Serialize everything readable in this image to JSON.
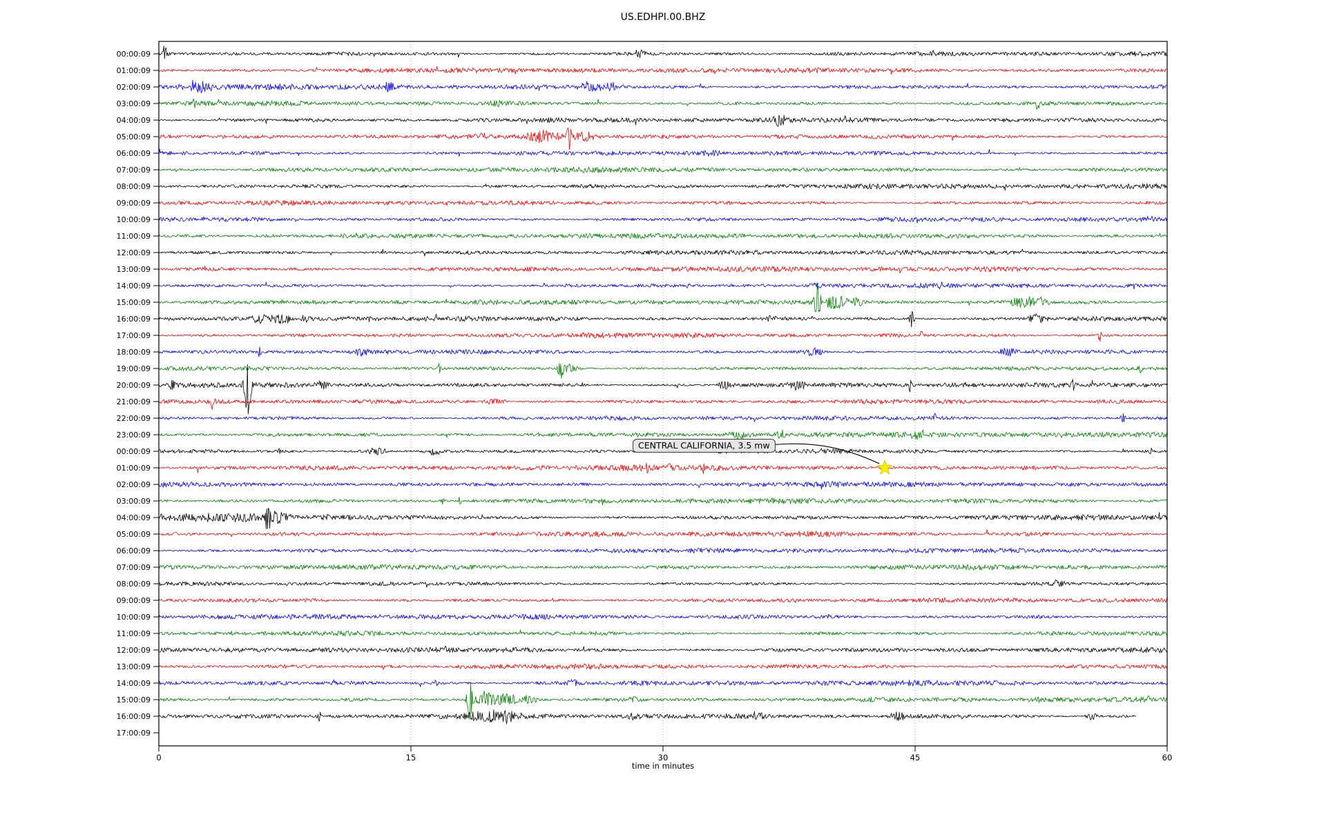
{
  "title": "US.EDHPI.00.BHZ",
  "xlabel": "time in minutes",
  "annotation": {
    "text": "CENTRAL CALIFORNIA, 3.5 mw",
    "marker": "yellow-star",
    "marker_color": "#ffee00",
    "row_index": 25,
    "row_label": "01:00:09",
    "minute": 43.2
  },
  "chart_data": {
    "type": "line",
    "subtype": "seismogram-dayplot-helicorder",
    "station": "US.EDHPI.00.BHZ",
    "title": "US.EDHPI.00.BHZ",
    "xlabel": "time in minutes",
    "x_axis": {
      "min": 0,
      "max": 60,
      "ticks": [
        0,
        15,
        30,
        45,
        60
      ],
      "gridlines": [
        15,
        30,
        45
      ],
      "grid_style": "dotted"
    },
    "minutes_per_row": 60,
    "color_cycle": [
      "#000000",
      "#ff0000",
      "#0000ff",
      "#008000"
    ],
    "grid_color": "#aaaaaa",
    "frame_color": "#000000",
    "rows": [
      {
        "label": "00:00:09",
        "color": "#000000",
        "events": [
          {
            "m": 0.35,
            "a": 13,
            "w": 0.08
          },
          {
            "m": 28.6,
            "a": 5,
            "w": 0.25
          }
        ]
      },
      {
        "label": "01:00:09",
        "color": "#ff0000",
        "events": []
      },
      {
        "label": "02:00:09",
        "color": "#0000ff",
        "events": [
          {
            "m": 2.3,
            "a": 7,
            "w": 0.5
          },
          {
            "m": 13.8,
            "a": 6,
            "w": 0.4
          },
          {
            "m": 25.8,
            "a": 7,
            "w": 0.45
          },
          {
            "m": 27.1,
            "a": 5,
            "w": 0.3
          }
        ]
      },
      {
        "label": "03:00:09",
        "color": "#008000",
        "events": [
          {
            "m": 2.1,
            "a": 6,
            "w": 0.08
          },
          {
            "m": 20.3,
            "a": 4,
            "w": 0.4
          },
          {
            "m": 52.3,
            "a": 8,
            "w": 0.09
          }
        ]
      },
      {
        "label": "04:00:09",
        "color": "#000000",
        "events": [
          {
            "m": 36.9,
            "a": 7,
            "w": 0.3
          }
        ]
      },
      {
        "label": "05:00:09",
        "color": "#ff0000",
        "events": [
          {
            "m": 19.3,
            "a": 6,
            "w": 0.08
          },
          {
            "m": 22.8,
            "a": 8,
            "w": 0.6
          },
          {
            "m": 24.4,
            "a": 22,
            "w": 0.1
          },
          {
            "m": 25.3,
            "a": 7,
            "w": 0.3
          }
        ]
      },
      {
        "label": "06:00:09",
        "color": "#0000ff",
        "events": [
          {
            "m": 33.0,
            "a": 4,
            "w": 0.4
          }
        ]
      },
      {
        "label": "07:00:09",
        "color": "#008000",
        "events": []
      },
      {
        "label": "08:00:09",
        "color": "#000000",
        "events": []
      },
      {
        "label": "09:00:09",
        "color": "#ff0000",
        "events": []
      },
      {
        "label": "10:00:09",
        "color": "#0000ff",
        "events": []
      },
      {
        "label": "11:00:09",
        "color": "#008000",
        "events": []
      },
      {
        "label": "12:00:09",
        "color": "#000000",
        "events": []
      },
      {
        "label": "13:00:09",
        "color": "#ff0000",
        "events": [
          {
            "m": 2.8,
            "a": 4,
            "w": 0.08
          }
        ]
      },
      {
        "label": "14:00:09",
        "color": "#0000ff",
        "events": [
          {
            "m": 31.5,
            "a": 5,
            "w": 0.07
          },
          {
            "m": 39.2,
            "a": 5,
            "w": 0.25
          }
        ]
      },
      {
        "label": "15:00:09",
        "color": "#008000",
        "events": [
          {
            "m": 39.2,
            "a": 28,
            "w": 0.13
          },
          {
            "m": 40.3,
            "a": 9,
            "w": 0.5
          },
          {
            "m": 41.6,
            "a": 5,
            "w": 0.35
          },
          {
            "m": 51.5,
            "a": 8,
            "w": 0.5
          },
          {
            "m": 52.6,
            "a": 6,
            "w": 0.25
          }
        ]
      },
      {
        "label": "16:00:09",
        "color": "#000000",
        "events": [
          {
            "m": 6.2,
            "a": 6,
            "w": 0.45
          },
          {
            "m": 7.3,
            "a": 8,
            "w": 0.35
          },
          {
            "m": 8.8,
            "a": 5,
            "w": 0.25
          },
          {
            "m": 36.5,
            "a": 4,
            "w": 0.25
          },
          {
            "m": 44.8,
            "a": 13,
            "w": 0.09
          },
          {
            "m": 52.2,
            "a": 7,
            "w": 0.35
          }
        ]
      },
      {
        "label": "17:00:09",
        "color": "#ff0000",
        "events": [
          {
            "m": 32.2,
            "a": 4,
            "w": 0.07
          },
          {
            "m": 45.4,
            "a": 6,
            "w": 0.08
          },
          {
            "m": 56.0,
            "a": 9,
            "w": 0.08
          }
        ]
      },
      {
        "label": "18:00:09",
        "color": "#0000ff",
        "events": [
          {
            "m": 6.0,
            "a": 7,
            "w": 0.09
          },
          {
            "m": 12.0,
            "a": 5,
            "w": 0.3
          },
          {
            "m": 39.0,
            "a": 6,
            "w": 0.4
          },
          {
            "m": 50.5,
            "a": 6,
            "w": 0.3
          }
        ]
      },
      {
        "label": "19:00:09",
        "color": "#008000",
        "events": [
          {
            "m": 16.7,
            "a": 7,
            "w": 0.08
          },
          {
            "m": 23.9,
            "a": 16,
            "w": 0.12
          },
          {
            "m": 24.4,
            "a": 6,
            "w": 0.4
          },
          {
            "m": 58.4,
            "a": 7,
            "w": 0.09
          }
        ]
      },
      {
        "label": "20:00:09",
        "color": "#000000",
        "events": [
          {
            "m": 0.8,
            "a": 8,
            "w": 0.08
          },
          {
            "m": 5.3,
            "a": 50,
            "w": 0.13
          },
          {
            "m": 9.7,
            "a": 5,
            "w": 0.3
          },
          {
            "m": 33.7,
            "a": 6,
            "w": 0.3
          },
          {
            "m": 38.0,
            "a": 7,
            "w": 0.3
          },
          {
            "m": 44.7,
            "a": 9,
            "w": 0.08
          },
          {
            "m": 54.4,
            "a": 7,
            "w": 0.08
          }
        ]
      },
      {
        "label": "21:00:09",
        "color": "#ff0000",
        "events": [
          {
            "m": 3.2,
            "a": 9,
            "w": 0.08
          },
          {
            "m": 20.0,
            "a": 4,
            "w": 0.5
          }
        ]
      },
      {
        "label": "22:00:09",
        "color": "#0000ff",
        "events": [
          {
            "m": 46.2,
            "a": 6,
            "w": 0.08
          },
          {
            "m": 57.4,
            "a": 8,
            "w": 0.09
          }
        ]
      },
      {
        "label": "23:00:09",
        "color": "#008000",
        "events": [
          {
            "m": 34.6,
            "a": 6,
            "w": 0.4
          },
          {
            "m": 37.0,
            "a": 6,
            "w": 0.3
          },
          {
            "m": 45.3,
            "a": 5,
            "w": 0.3
          },
          {
            "m": 54.0,
            "a": 4,
            "w": 0.25
          }
        ]
      },
      {
        "label": "00:00:09",
        "color": "#000000",
        "events": [
          {
            "m": 7.2,
            "a": 6,
            "w": 0.08
          },
          {
            "m": 13.0,
            "a": 5,
            "w": 0.4
          },
          {
            "m": 16.3,
            "a": 5,
            "w": 0.3
          },
          {
            "m": 33.6,
            "a": 5,
            "w": 0.25
          },
          {
            "m": 59.0,
            "a": 6,
            "w": 0.08
          }
        ]
      },
      {
        "label": "01:00:09",
        "color": "#ff0000",
        "events": [
          {
            "m": 29.0,
            "a": 6,
            "w": 0.09
          },
          {
            "m": 30.4,
            "a": 6,
            "w": 0.09
          },
          {
            "m": 32.4,
            "a": 6,
            "w": 0.08
          }
        ]
      },
      {
        "label": "02:00:09",
        "color": "#0000ff",
        "events": []
      },
      {
        "label": "03:00:09",
        "color": "#008000",
        "events": [
          {
            "m": 16.9,
            "a": 6,
            "w": 0.08
          },
          {
            "m": 17.9,
            "a": 5,
            "w": 0.08
          }
        ]
      },
      {
        "label": "04:00:09",
        "color": "#000000",
        "events": [
          {
            "m": 1.5,
            "a": 5,
            "w": 0.7
          },
          {
            "m": 3.5,
            "a": 6,
            "w": 0.7
          },
          {
            "m": 5.2,
            "a": 6,
            "w": 0.5
          },
          {
            "m": 6.5,
            "a": 24,
            "w": 0.1
          },
          {
            "m": 7.1,
            "a": 8,
            "w": 0.5
          }
        ]
      },
      {
        "label": "05:00:09",
        "color": "#ff0000",
        "events": []
      },
      {
        "label": "06:00:09",
        "color": "#0000ff",
        "events": []
      },
      {
        "label": "07:00:09",
        "color": "#008000",
        "events": []
      },
      {
        "label": "08:00:09",
        "color": "#000000",
        "events": [
          {
            "m": 53.5,
            "a": 4,
            "w": 0.25
          }
        ]
      },
      {
        "label": "09:00:09",
        "color": "#ff0000",
        "events": []
      },
      {
        "label": "10:00:09",
        "color": "#0000ff",
        "events": []
      },
      {
        "label": "11:00:09",
        "color": "#008000",
        "events": []
      },
      {
        "label": "12:00:09",
        "color": "#000000",
        "events": []
      },
      {
        "label": "13:00:09",
        "color": "#ff0000",
        "events": []
      },
      {
        "label": "14:00:09",
        "color": "#0000ff",
        "events": [
          {
            "m": 16.5,
            "a": 4,
            "w": 0.07
          },
          {
            "m": 24.7,
            "a": 5,
            "w": 0.25
          }
        ]
      },
      {
        "label": "15:00:09",
        "color": "#008000",
        "events": [
          {
            "m": 18.5,
            "a": 30,
            "w": 0.12
          },
          {
            "m": 19.4,
            "a": 8,
            "w": 0.45
          },
          {
            "m": 20.6,
            "a": 8,
            "w": 0.7
          },
          {
            "m": 22.1,
            "a": 6,
            "w": 0.35
          },
          {
            "m": 28.2,
            "a": 4,
            "w": 0.25
          },
          {
            "m": 52.3,
            "a": 6,
            "w": 0.08
          },
          {
            "m": 58.9,
            "a": 5,
            "w": 0.08
          }
        ]
      },
      {
        "label": "16:00:09",
        "color": "#000000",
        "end_minute": 58.1,
        "events": [
          {
            "m": 9.5,
            "a": 10,
            "w": 0.08
          },
          {
            "m": 19.6,
            "a": 8,
            "w": 0.8
          },
          {
            "m": 20.9,
            "a": 6,
            "w": 0.45
          },
          {
            "m": 28.3,
            "a": 4,
            "w": 0.25
          },
          {
            "m": 35.6,
            "a": 5,
            "w": 0.25
          },
          {
            "m": 44.0,
            "a": 6,
            "w": 0.3
          },
          {
            "m": 55.5,
            "a": 5,
            "w": 0.25
          }
        ]
      },
      {
        "label": "17:00:09",
        "color": "#ff0000",
        "empty": true,
        "events": []
      }
    ],
    "annotation": {
      "text": "CENTRAL CALIFORNIA, 3.5 mw",
      "marker": "yellow-star",
      "row_index": 25,
      "minute": 43.2
    }
  }
}
